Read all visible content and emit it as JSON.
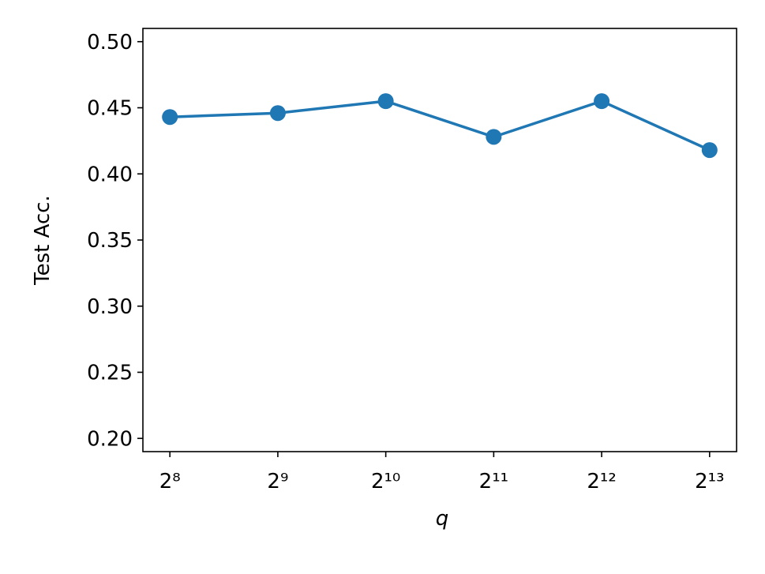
{
  "chart_data": {
    "type": "line",
    "x": [
      256,
      512,
      1024,
      2048,
      4096,
      8192
    ],
    "xscale": "log2",
    "xlim": [
      215.27,
      9741.6
    ],
    "xticks": [
      {
        "value": 256,
        "label": "2⁸"
      },
      {
        "value": 512,
        "label": "2⁹"
      },
      {
        "value": 1024,
        "label": "2¹⁰"
      },
      {
        "value": 2048,
        "label": "2¹¹"
      },
      {
        "value": 4096,
        "label": "2¹²"
      },
      {
        "value": 8192,
        "label": "2¹³"
      }
    ],
    "ylim": [
      0.19,
      0.51
    ],
    "yticks": [
      {
        "value": 0.2,
        "label": "0.20"
      },
      {
        "value": 0.25,
        "label": "0.25"
      },
      {
        "value": 0.3,
        "label": "0.30"
      },
      {
        "value": 0.35,
        "label": "0.35"
      },
      {
        "value": 0.4,
        "label": "0.40"
      },
      {
        "value": 0.45,
        "label": "0.45"
      },
      {
        "value": 0.5,
        "label": "0.50"
      }
    ],
    "xlabel": "q",
    "ylabel": "Test Acc.",
    "grid": false,
    "series": [
      {
        "color": "#1f77b4",
        "values": [
          0.443,
          0.446,
          0.455,
          0.428,
          0.455,
          0.418
        ]
      }
    ]
  }
}
